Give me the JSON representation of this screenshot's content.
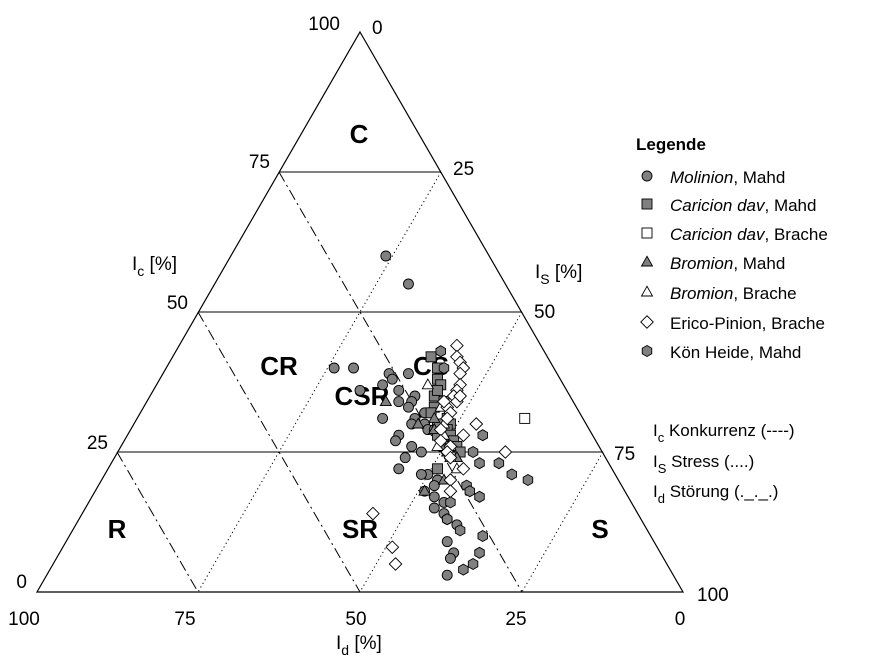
{
  "chart_data": {
    "type": "scatter",
    "subtype": "ternary",
    "axes": {
      "ic": {
        "label_main": "I",
        "label_sub": "c",
        "label_unit": " [%]",
        "ticks": [
          "100",
          "75",
          "50",
          "25",
          "0"
        ]
      },
      "is": {
        "label_main": "I",
        "label_sub": "S",
        "label_unit": " [%]",
        "ticks": [
          "0",
          "25",
          "50",
          "75",
          "100"
        ]
      },
      "id": {
        "label_main": "I",
        "label_sub": "d",
        "label_unit": " [%]",
        "ticks": [
          "100",
          "75",
          "50",
          "25",
          "0"
        ]
      }
    },
    "regions": [
      "C",
      "CR",
      "CS",
      "CSR",
      "R",
      "SR",
      "S"
    ],
    "legend": {
      "title": "Legende",
      "entries": [
        {
          "italic": "Molinion",
          "rest": ", Mahd",
          "marker": "circle",
          "fill": "#808080"
        },
        {
          "italic": "Caricion dav",
          "rest": ", Mahd",
          "marker": "square",
          "fill": "#808080"
        },
        {
          "italic": "Caricion dav",
          "rest": ", Brache",
          "marker": "square",
          "fill": "#ffffff"
        },
        {
          "italic": "Bromion",
          "rest": ", Mahd",
          "marker": "triangle",
          "fill": "#808080"
        },
        {
          "italic": "Bromion",
          "rest": ", Brache",
          "marker": "triangle",
          "fill": "#ffffff"
        },
        {
          "italic": "",
          "rest": "Erico-Pinion, Brache",
          "marker": "diamond",
          "fill": "#ffffff"
        },
        {
          "italic": "",
          "rest": "Kön Heide, Mahd",
          "marker": "hexagon",
          "fill": "#808080"
        }
      ]
    },
    "strategy_key": [
      {
        "main": "I",
        "sub": "c",
        "text": " Konkurrenz (----)"
      },
      {
        "main": "I",
        "sub": "S",
        "text": " Stress (....)"
      },
      {
        "main": "I",
        "sub": "d",
        "text": " Störung (._._.)"
      }
    ],
    "series": [
      {
        "name": "Molinion, Mahd",
        "marker": "circle",
        "fill": "#808080",
        "points": [
          [
            60,
            24
          ],
          [
            55,
            30
          ],
          [
            40,
            26
          ],
          [
            40,
            29
          ],
          [
            39,
            35
          ],
          [
            39,
            38
          ],
          [
            37,
            35
          ],
          [
            35,
            41
          ],
          [
            34,
            41
          ],
          [
            32,
            44
          ],
          [
            31,
            43
          ],
          [
            30,
            45
          ],
          [
            29,
            46
          ],
          [
            38,
            36
          ],
          [
            36,
            38
          ],
          [
            33,
            41
          ],
          [
            30,
            43
          ],
          [
            26,
            45
          ],
          [
            25,
            47
          ],
          [
            21,
            50
          ],
          [
            20,
            52
          ],
          [
            19,
            52
          ],
          [
            24,
            45
          ],
          [
            28,
            42
          ],
          [
            21,
            49
          ],
          [
            31,
            38
          ],
          [
            27,
            42
          ],
          [
            22,
            45
          ],
          [
            18,
            51
          ],
          [
            16,
            55
          ],
          [
            14,
            56
          ],
          [
            13,
            57
          ],
          [
            12,
            59
          ],
          [
            9,
            59
          ],
          [
            7,
            61
          ],
          [
            6,
            61
          ],
          [
            3,
            62
          ],
          [
            17,
            53
          ],
          [
            15,
            54
          ],
          [
            36,
            32
          ],
          [
            34,
            39
          ],
          [
            29,
            47
          ]
        ]
      },
      {
        "name": "Caricion dav, Mahd",
        "marker": "square",
        "fill": "#808080",
        "points": [
          [
            42,
            40
          ],
          [
            40,
            42
          ],
          [
            38,
            43
          ],
          [
            37,
            44
          ],
          [
            35,
            44
          ],
          [
            34,
            46
          ],
          [
            33,
            45
          ],
          [
            31,
            48
          ],
          [
            30,
            49
          ],
          [
            29,
            49
          ],
          [
            28,
            50
          ],
          [
            27,
            51
          ],
          [
            26,
            52
          ],
          [
            25,
            53
          ],
          [
            22,
            51
          ],
          [
            32,
            45
          ],
          [
            30,
            47
          ],
          [
            28,
            48
          ],
          [
            26,
            50
          ],
          [
            36,
            44
          ]
        ]
      },
      {
        "name": "Caricion dav, Brache",
        "marker": "square",
        "fill": "#ffffff",
        "points": [
          [
            31,
            60
          ]
        ]
      },
      {
        "name": "Bromion, Mahd",
        "marker": "triangle",
        "fill": "#808080",
        "points": [
          [
            34,
            37
          ],
          [
            31,
            46
          ],
          [
            29,
            47
          ],
          [
            27,
            49
          ],
          [
            25,
            51
          ],
          [
            24,
            53
          ],
          [
            20,
            53
          ],
          [
            18,
            51
          ],
          [
            30,
            44
          ]
        ]
      },
      {
        "name": "Bromion, Brache",
        "marker": "triangle",
        "fill": "#ffffff",
        "points": [
          [
            37,
            42
          ],
          [
            33,
            46
          ],
          [
            30,
            48
          ],
          [
            28,
            49
          ],
          [
            26,
            51
          ],
          [
            24,
            52
          ],
          [
            22,
            54
          ],
          [
            26,
            49
          ]
        ]
      },
      {
        "name": "Erico-Pinion, Brache",
        "marker": "diamond",
        "fill": "#ffffff",
        "points": [
          [
            44,
            43
          ],
          [
            42,
            44
          ],
          [
            41,
            45
          ],
          [
            40,
            46
          ],
          [
            39,
            46
          ],
          [
            37,
            47
          ],
          [
            36,
            47
          ],
          [
            35,
            47
          ],
          [
            34,
            48
          ],
          [
            33,
            47
          ],
          [
            32,
            48
          ],
          [
            31,
            48
          ],
          [
            29,
            48
          ],
          [
            27,
            49
          ],
          [
            26,
            51
          ],
          [
            25,
            51
          ],
          [
            24,
            52
          ],
          [
            22,
            55
          ],
          [
            20,
            54
          ],
          [
            18,
            55
          ],
          [
            25,
            60
          ],
          [
            30,
            53
          ],
          [
            28,
            52
          ],
          [
            34,
            46
          ],
          [
            14,
            45
          ],
          [
            8,
            51
          ],
          [
            5,
            53
          ],
          [
            35,
            48
          ]
        ]
      },
      {
        "name": "Kön Heide, Mahd",
        "marker": "hexagon",
        "fill": "#808080",
        "points": [
          [
            43,
            41
          ],
          [
            40,
            43
          ],
          [
            25,
            55
          ],
          [
            23,
            57
          ],
          [
            23,
            60
          ],
          [
            21,
            63
          ],
          [
            20,
            66
          ],
          [
            19,
            57
          ],
          [
            18,
            58
          ],
          [
            16,
            56
          ],
          [
            13,
            57
          ],
          [
            10,
            64
          ],
          [
            11,
            60
          ],
          [
            7,
            65
          ],
          [
            5,
            65
          ],
          [
            4,
            64
          ],
          [
            17,
            60
          ],
          [
            28,
            55
          ]
        ]
      }
    ]
  }
}
